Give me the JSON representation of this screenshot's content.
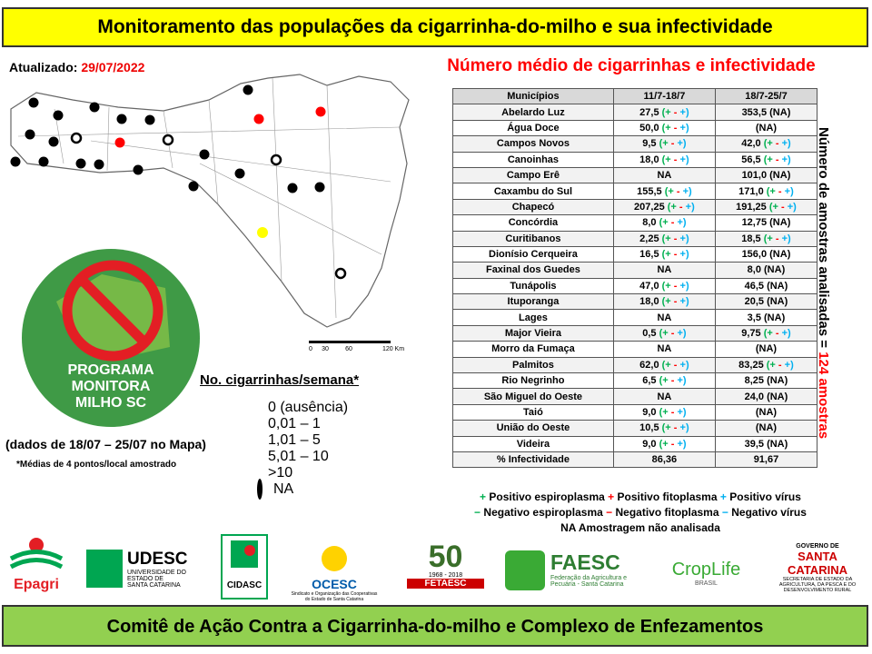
{
  "header": {
    "title": "Monitoramento das populações da cigarrinha-do-milho e sua infectividade"
  },
  "updated": {
    "label": "Atualizado:",
    "date": "29/07/2022"
  },
  "table": {
    "title": "Número médio de cigarrinhas e infectividade",
    "sign_colors": [
      "#00b050",
      "#ff0000",
      "#00b0f0"
    ],
    "headers": [
      "Municípios",
      "11/7-18/7",
      "18/7-25/7"
    ],
    "rows": [
      [
        "Abelardo Luz",
        {
          "value": "27,5",
          "signs": [
            "(+",
            "-",
            "+)"
          ]
        },
        "353,5 (NA)"
      ],
      [
        "Água Doce",
        {
          "value": "50,0",
          "signs": [
            "(+",
            "-",
            "+)"
          ]
        },
        "(NA)"
      ],
      [
        "Campos Novos",
        {
          "value": "9,5",
          "signs": [
            "(+",
            "-",
            "+)"
          ]
        },
        {
          "value": "42,0",
          "signs": [
            "(+",
            "-",
            "+)"
          ]
        }
      ],
      [
        "Canoinhas",
        {
          "value": "18,0",
          "signs": [
            "(+",
            "-",
            "+)"
          ]
        },
        {
          "value": "56,5",
          "signs": [
            "(+",
            "-",
            "+)"
          ]
        }
      ],
      [
        "Campo Erê",
        "NA",
        "101,0 (NA)"
      ],
      [
        "Caxambu do Sul",
        {
          "value": "155,5",
          "signs": [
            "(+",
            "-",
            "+)"
          ]
        },
        {
          "value": "171,0",
          "signs": [
            "(+",
            "-",
            "+)"
          ]
        }
      ],
      [
        "Chapecó",
        {
          "value": "207,25",
          "signs": [
            "(+",
            "-",
            "+)"
          ]
        },
        {
          "value": "191,25",
          "signs": [
            "(+",
            "-",
            "+)"
          ]
        }
      ],
      [
        "Concórdia",
        {
          "value": "8,0",
          "signs": [
            "(+",
            "-",
            "+)"
          ]
        },
        "12,75 (NA)"
      ],
      [
        "Curitibanos",
        {
          "value": "2,25",
          "signs": [
            "(+",
            "-",
            "+)"
          ]
        },
        {
          "value": "18,5",
          "signs": [
            "(+",
            "-",
            "+)"
          ]
        }
      ],
      [
        "Dionísio Cerqueira",
        {
          "value": "16,5",
          "signs": [
            "(+",
            "-",
            "+)"
          ]
        },
        "156,0 (NA)"
      ],
      [
        "Faxinal dos Guedes",
        "NA",
        "8,0 (NA)"
      ],
      [
        "Tunápolis",
        {
          "value": "47,0",
          "signs": [
            "(+",
            "-",
            "+)"
          ]
        },
        "46,5 (NA)"
      ],
      [
        "Ituporanga",
        {
          "value": "18,0",
          "signs": [
            "(+",
            "-",
            "+)"
          ]
        },
        "20,5 (NA)"
      ],
      [
        "Lages",
        "NA",
        "3,5 (NA)"
      ],
      [
        "Major Vieira",
        {
          "value": "0,5",
          "signs": [
            "(+",
            "-",
            "+)"
          ]
        },
        {
          "value": "9,75",
          "signs": [
            "(+",
            "-",
            "+)"
          ]
        }
      ],
      [
        "Morro da Fumaça",
        "NA",
        "(NA)"
      ],
      [
        "Palmitos",
        {
          "value": "62,0",
          "signs": [
            "(+",
            "-",
            "+)"
          ]
        },
        {
          "value": "83,25",
          "signs": [
            "(+",
            "-",
            "+)"
          ]
        }
      ],
      [
        "Rio Negrinho",
        {
          "value": "6,5",
          "signs": [
            "(+",
            "-",
            "+)"
          ]
        },
        "8,25 (NA)"
      ],
      [
        "São Miguel do Oeste",
        "NA",
        "24,0 (NA)"
      ],
      [
        "Taió",
        {
          "value": "9,0",
          "signs": [
            "(+",
            "-",
            "+)"
          ]
        },
        "(NA)"
      ],
      [
        "União do Oeste",
        {
          "value": "10,5",
          "signs": [
            "(+",
            "-",
            "+)"
          ]
        },
        "(NA)"
      ],
      [
        "Videira",
        {
          "value": "9,0",
          "signs": [
            "(+",
            "-",
            "+)"
          ]
        },
        "39,5 (NA)"
      ],
      [
        "% Infectividade",
        "86,36",
        "91,67"
      ]
    ]
  },
  "side_note": {
    "text": "Número de amostras analisadas = ",
    "count": "124 amostras"
  },
  "sign_legend": [
    [
      {
        "sign": "+",
        "label": "Positivo espiroplasma",
        "color": "#00b050"
      },
      {
        "sign": "+",
        "label": "Positivo fitoplasma",
        "color": "#ff0000"
      },
      {
        "sign": "+",
        "label": "Positivo vírus",
        "color": "#00b0f0"
      }
    ],
    [
      {
        "sign": "−",
        "label": "Negativo espiroplasma",
        "color": "#00b050"
      },
      {
        "sign": "−",
        "label": "Negativo fitoplasma",
        "color": "#ff0000"
      },
      {
        "sign": "−",
        "label": "Negativo vírus",
        "color": "#00b0f0"
      }
    ],
    [
      {
        "sign": "NA",
        "label": "Amostragem não analisada",
        "color": "#000000"
      }
    ]
  ],
  "map": {
    "scale": [
      "0",
      "30",
      "60",
      "120 Km"
    ]
  },
  "key": {
    "title": "No. cigarrinhas/semana*",
    "items": [
      {
        "label": "0 (ausência)",
        "color": "#00b050"
      },
      {
        "label": "0,01 – 1",
        "color": "#92d050"
      },
      {
        "label": "1,01 – 5",
        "color": "#ffff00"
      },
      {
        "label": "5,01 – 10",
        "color": "#ff0000"
      },
      {
        "label": ">10",
        "color": "#000000"
      },
      {
        "label": "NA",
        "color": "ring"
      }
    ]
  },
  "program": {
    "lines": [
      "PROGRAMA",
      "MONITORA",
      "MILHO SC"
    ]
  },
  "notes": [
    "(dados de 18/07 – 25/07 no Mapa)",
    "*Médias de 4 pontos/local amostrado"
  ],
  "logos": {
    "epagri": "Epagri",
    "udesc": [
      "UDESC",
      "UNIVERSIDADE DO ESTADO DE",
      "SANTA CATARINA"
    ],
    "cidasc": "CIDASC",
    "ocesc": [
      "OCESC",
      "Sindicato e Organização das Cooperativas do Estado de Santa Catarina"
    ],
    "fetaesc": [
      "50",
      "1968 - 2018",
      "FETAESC"
    ],
    "faesc": [
      "FAESC",
      "Federação da Agricultura e Pecuária - Santa Catarina"
    ],
    "croplife": [
      "CropLife",
      "BRASIL"
    ],
    "gov": [
      "GOVERNO DE",
      "SANTA CATARINA",
      "SECRETARIA DE ESTADO DA AGRICULTURA, DA PESCA E DO DESENVOLVIMENTO RURAL"
    ]
  },
  "footer": {
    "title": "Comitê de Ação Contra a Cigarrinha-do-milho e Complexo de Enfezamentos"
  }
}
